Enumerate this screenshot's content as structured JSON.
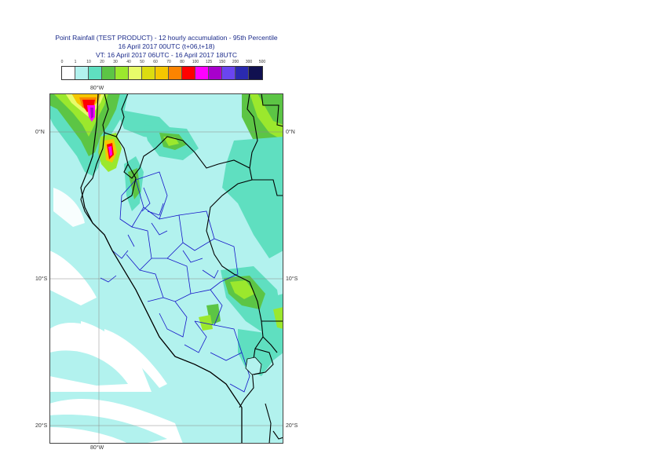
{
  "header": {
    "title": "Point Rainfall (TEST PRODUCT) - 12 hourly accumulation - 95th Percentile",
    "base_time": "16 April 2017 00UTC (t+06,t+18)",
    "valid_time": "VT: 16 April 2017 06UTC - 16 April 2017 18UTC"
  },
  "legend": {
    "thresholds": [
      "0",
      "1",
      "10",
      "20",
      "30",
      "40",
      "50",
      "60",
      "70",
      "80",
      "100",
      "125",
      "150",
      "200",
      "300",
      "500"
    ],
    "colors": [
      "#ffffff",
      "#b2f2ee",
      "#5fdfc0",
      "#5cc545",
      "#9be82d",
      "#e8fb6a",
      "#dcdc10",
      "#f5c700",
      "#fb8400",
      "#ff0000",
      "#ff00ff",
      "#a800cc",
      "#6a45f0",
      "#2a2ab0",
      "#101050"
    ]
  },
  "map": {
    "lon_labels_top": [
      "80°W"
    ],
    "lon_labels_bottom": [
      "80°W"
    ],
    "lat_labels_left": [
      "0°N",
      "10°S",
      "20°S"
    ],
    "lat_labels_right": [
      "0°N",
      "10°S",
      "20°S"
    ],
    "colors": {
      "ocean_light": "#b2f2ee",
      "ocean_white": "#ffffff",
      "land_light": "#b2f2ee",
      "land_mid": "#5fdfc0",
      "country_border": "#000000",
      "admin_border": "#1515c8",
      "graticule": "#888888"
    }
  }
}
